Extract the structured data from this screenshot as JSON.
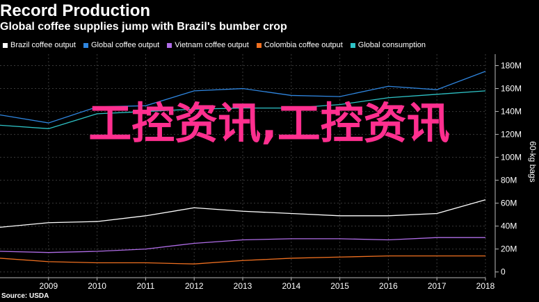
{
  "header": {
    "title": "Record Production",
    "subtitle": "Global coffee supplies jump with Brazil's bumber crop"
  },
  "source": "Source: USDA",
  "overlay_text": "工控资讯,工控资讯",
  "chart_data": {
    "type": "line",
    "title": "Record Production",
    "subtitle": "Global coffee supplies jump with Brazil's bumber crop",
    "xlabel": "",
    "ylabel": "60-kg bags",
    "x": [
      2008,
      2009,
      2010,
      2011,
      2012,
      2013,
      2014,
      2015,
      2016,
      2017,
      2018
    ],
    "x_ticks": [
      "2009",
      "2010",
      "2011",
      "2012",
      "2013",
      "2014",
      "2015",
      "2016",
      "2017",
      "2018"
    ],
    "xlim": [
      2008,
      2018
    ],
    "ylim": [
      -5,
      190
    ],
    "y_ticks": [
      0,
      20,
      40,
      60,
      80,
      100,
      120,
      140,
      160,
      180
    ],
    "y_tick_labels": [
      "0",
      "20M",
      "40M",
      "60M",
      "80M",
      "100M",
      "120M",
      "140M",
      "160M",
      "180M"
    ],
    "grid": true,
    "legend_position": "top",
    "series": [
      {
        "name": "Brazil coffee output",
        "color": "#ffffff",
        "values": [
          39,
          43,
          44,
          49,
          56,
          53,
          51,
          49,
          49,
          51,
          63
        ]
      },
      {
        "name": "Global coffee output",
        "color": "#2f86e0",
        "values": [
          137,
          130,
          144,
          145,
          158,
          160,
          154,
          153,
          162,
          159,
          175
        ]
      },
      {
        "name": "Vietnam coffee output",
        "color": "#b06de8",
        "values": [
          18,
          17,
          18,
          20,
          25,
          28,
          29,
          29,
          28,
          30,
          30
        ]
      },
      {
        "name": "Colombia coffee output",
        "color": "#f07020",
        "values": [
          12,
          9,
          8,
          8,
          7,
          10,
          12,
          13,
          14,
          14,
          14
        ]
      },
      {
        "name": "Global consumption",
        "color": "#2ec4c8",
        "values": [
          128,
          125,
          138,
          140,
          142,
          143,
          143,
          146,
          152,
          155,
          158
        ]
      }
    ]
  }
}
